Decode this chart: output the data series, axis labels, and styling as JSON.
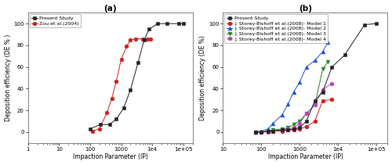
{
  "panel_a": {
    "title": "(a)",
    "xlabel": "Impaction Parameter (IP)",
    "ylabel": "Deposition efficiency (DE % )",
    "xlim": [
      1,
      200000
    ],
    "ylim": [
      -10,
      110
    ],
    "xticks": [
      1,
      10,
      100,
      1000,
      10000,
      100000
    ],
    "yticks": [
      0,
      20,
      40,
      60,
      80,
      100
    ],
    "present_study": {
      "label": "Present Study",
      "color": "#222222",
      "marker": "s",
      "x": [
        100,
        220,
        420,
        700,
        1200,
        2000,
        3500,
        5500,
        8000,
        15000,
        30000,
        70000,
        100000
      ],
      "y": [
        3,
        7,
        7,
        12,
        22,
        39,
        64,
        85,
        95,
        100,
        100,
        100,
        100
      ]
    },
    "zou2004": {
      "label": "Zou et al.(2004)",
      "color": "#cc2222",
      "marker": "o",
      "x": [
        120,
        200,
        350,
        500,
        700,
        1000,
        1500,
        2000,
        3000,
        5000,
        7000,
        9000
      ],
      "y": [
        1,
        3,
        18,
        31,
        47,
        67,
        79,
        85,
        86,
        86,
        86,
        86
      ]
    }
  },
  "panel_b": {
    "title": "(b)",
    "xlabel": "Impaction Parameter (IP)",
    "ylabel": "Deposition efficiency (DE %)",
    "xlim": [
      10,
      200000
    ],
    "ylim": [
      -10,
      110
    ],
    "xticks": [
      10,
      100,
      1000,
      10000,
      100000
    ],
    "yticks": [
      0,
      20,
      40,
      60,
      80,
      100
    ],
    "present_study": {
      "label": "Present Study",
      "color": "#222222",
      "marker": "s",
      "x": [
        70,
        100,
        150,
        200,
        350,
        500,
        700,
        1000,
        1500,
        2500,
        4000,
        7000,
        15000,
        50000,
        100000
      ],
      "y": [
        0,
        0,
        1,
        1,
        2,
        2,
        3,
        4,
        10,
        29,
        37,
        60,
        71,
        99,
        100
      ]
    },
    "model1": {
      "label": "J. Storey-Bishoff et al.(2008)- Model 1",
      "color": "#cc2222",
      "marker": "o",
      "x": [
        70,
        100,
        150,
        200,
        350,
        500,
        700,
        1000,
        1500,
        2500,
        4000,
        7000
      ],
      "y": [
        0,
        0,
        1,
        1,
        1,
        2,
        2,
        3,
        5,
        10,
        29,
        30
      ]
    },
    "model2": {
      "label": "J. Storey-Bishoff et al.(2008)- Model 2",
      "color": "#2255cc",
      "marker": "^",
      "x": [
        70,
        100,
        150,
        200,
        350,
        500,
        700,
        1000,
        1500,
        2500,
        4000,
        5500
      ],
      "y": [
        0,
        1,
        3,
        8,
        16,
        26,
        37,
        46,
        60,
        66,
        74,
        83
      ]
    },
    "model3": {
      "label": "J. Storey-Bishoff et al.(2008)- Model 3",
      "color": "#228822",
      "marker": "v",
      "x": [
        70,
        100,
        150,
        200,
        350,
        500,
        700,
        1000,
        1500,
        2500,
        4000,
        5500
      ],
      "y": [
        0,
        0,
        1,
        2,
        3,
        4,
        7,
        10,
        17,
        25,
        58,
        65
      ]
    },
    "model4": {
      "label": "J. Storey-Bishoff et al.(2008)- Model 4",
      "color": "#bb44bb",
      "marker": "o",
      "x": [
        70,
        100,
        150,
        200,
        350,
        500,
        700,
        1000,
        1500,
        2500,
        4000,
        7000
      ],
      "y": [
        0,
        0,
        0,
        1,
        2,
        3,
        4,
        8,
        17,
        25,
        39,
        45
      ]
    }
  },
  "figure_bg": "#ffffff",
  "axes_bg": "#ffffff",
  "line_width": 0.7,
  "marker_size": 3.5,
  "fontsize_label": 5.5,
  "fontsize_title": 7.5,
  "fontsize_tick": 5,
  "fontsize_legend": 4.5
}
